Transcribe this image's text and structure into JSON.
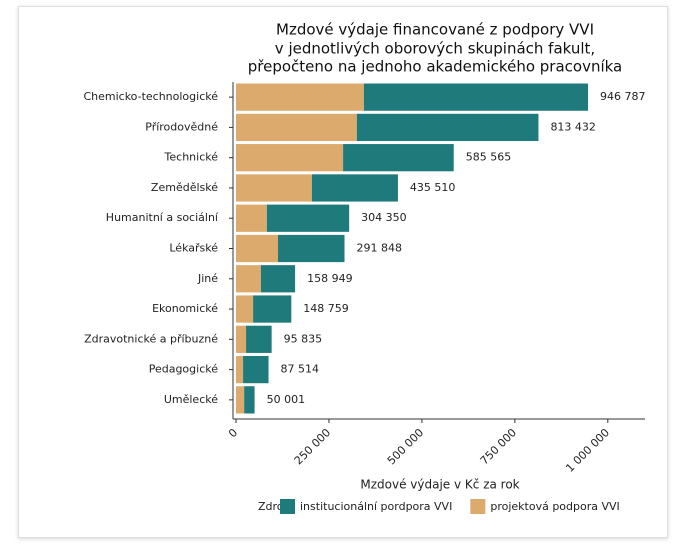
{
  "chart_data": {
    "type": "stacked-barh",
    "title": [
      "Mzdové výdaje financované z podpory VVI",
      "v jednotlivých oborových skupinách fakult,",
      "přepočteno na jednoho akademického pracovníka"
    ],
    "categories": [
      "Chemicko-technologické",
      "Přírodovědné",
      "Technické",
      "Zemědělské",
      "Humanitní a sociální",
      "Lékařské",
      "Jiné",
      "Ekonomické",
      "Zdravotnické a příbuzné",
      "Pedagogické",
      "Umělecké"
    ],
    "series": [
      {
        "name": "institucionální pordpora VVI",
        "color": "#1f7b7b",
        "values": [
          602787,
          488432,
          297565,
          231510,
          221350,
          178848,
          91949,
          102759,
          68835,
          68514,
          28001
        ]
      },
      {
        "name": "projektová podpora VVI",
        "color": "#dcaa6c",
        "values": [
          344000,
          325000,
          288000,
          204000,
          83000,
          113000,
          67000,
          46000,
          27000,
          19000,
          22000
        ]
      }
    ],
    "totals": [
      946787,
      813432,
      585565,
      435510,
      304350,
      291848,
      158949,
      148759,
      95835,
      87514,
      50001
    ],
    "total_labels": [
      "946 787",
      "813 432",
      "585 565",
      "435 510",
      "304 350",
      "291 848",
      "158 949",
      "148 759",
      "95 835",
      "87 514",
      "50 001"
    ],
    "xlim": [
      0,
      1100000
    ],
    "xticks": [
      0,
      {
        "value": 250000,
        "label": "250 000"
      },
      {
        "value": 500000,
        "label": "500 000"
      },
      {
        "value": 750000,
        "label": "750 000"
      },
      {
        "value": 1000000,
        "label": "1 000 000"
      }
    ],
    "xlabel": "Mzdové výdaje v Kč za rok",
    "legend_title": "Zdroj:",
    "legend": "bottom"
  }
}
